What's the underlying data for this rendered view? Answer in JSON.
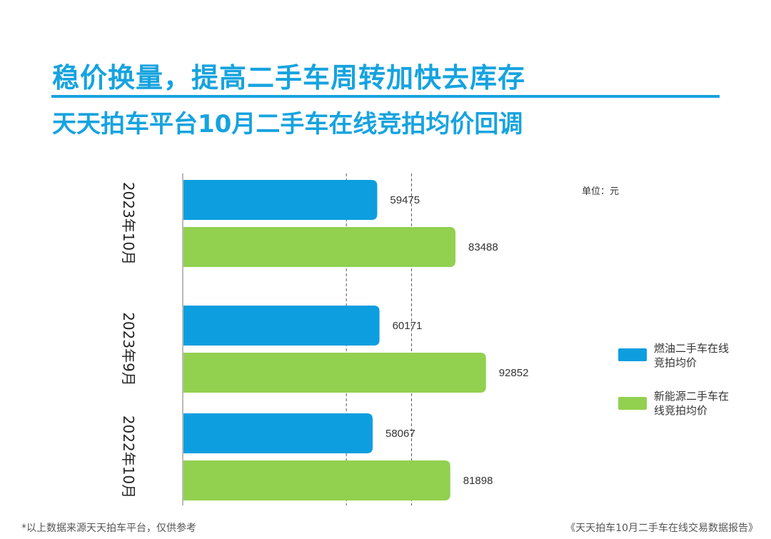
{
  "header": {
    "title": "稳价换量，提高二手车周转加快去库存",
    "subtitle": "天天拍车平台10月二手车在线竞拍均价回调"
  },
  "unit_note": "单位：元",
  "legend": {
    "items": [
      {
        "label": "燃油二手车在线竞拍均价",
        "color": "#0d9ee0"
      },
      {
        "label": "新能源二手车在线竞拍均价",
        "color": "#92d050"
      }
    ]
  },
  "footer": {
    "note": "*以上数据来源天天拍车平台，仅供参考",
    "source": "《天天拍车10月二手车在线交易数据报告》"
  },
  "colors": {
    "accent": "#16a3df",
    "fuel_bar": "#0d9ee0",
    "ev_bar": "#92d050"
  },
  "chart_data": {
    "type": "bar",
    "orientation": "horizontal",
    "categories": [
      "2023年10月",
      "2023年9月",
      "2022年10月"
    ],
    "series": [
      {
        "name": "燃油二手车在线竞拍均价",
        "values": [
          59475,
          60171,
          58067
        ]
      },
      {
        "name": "新能源二手车在线竞拍均价",
        "values": [
          83488,
          92852,
          81898
        ]
      }
    ],
    "xlim": [
      0,
      100000
    ],
    "reference_lines": [
      50000,
      70000
    ],
    "data_labels": true,
    "legend_position": "right",
    "unit": "元"
  }
}
